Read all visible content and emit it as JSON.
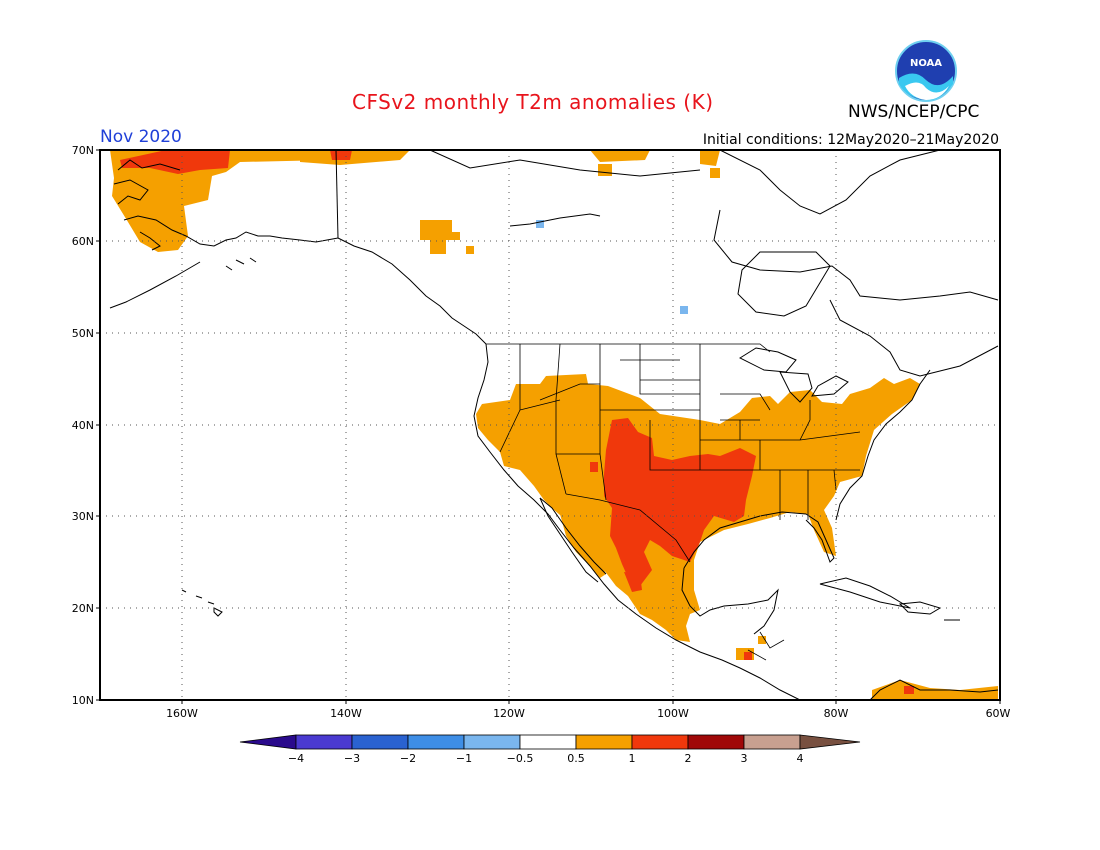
{
  "header": {
    "title": "CFSv2 monthly T2m anomalies (K)",
    "month": "Nov 2020",
    "initial_conditions": "Initial conditions: 12May2020–21May2020",
    "agency": "NWS/NCEP/CPC",
    "logo_text": "NOAA"
  },
  "map": {
    "lon_range": [
      -172,
      -60
    ],
    "lat_range": [
      10,
      70
    ],
    "lat_ticks": [
      "10N",
      "20N",
      "30N",
      "40N",
      "50N",
      "60N",
      "70N"
    ],
    "lon_ticks": [
      "160W",
      "140W",
      "120W",
      "100W",
      "80W",
      "60W"
    ],
    "gridlines": true
  },
  "legend": {
    "colors": [
      "#2a0a8c",
      "#4a3ad0",
      "#2a62d0",
      "#3e8ee6",
      "#7ab6ee",
      "#ffffff",
      "#f5a000",
      "#f0380c",
      "#a00808",
      "#c8a090",
      "#785040"
    ],
    "labels": [
      "−4",
      "−3",
      "−2",
      "−1",
      "−0.5",
      "0.5",
      "1",
      "2",
      "3",
      "4"
    ]
  }
}
